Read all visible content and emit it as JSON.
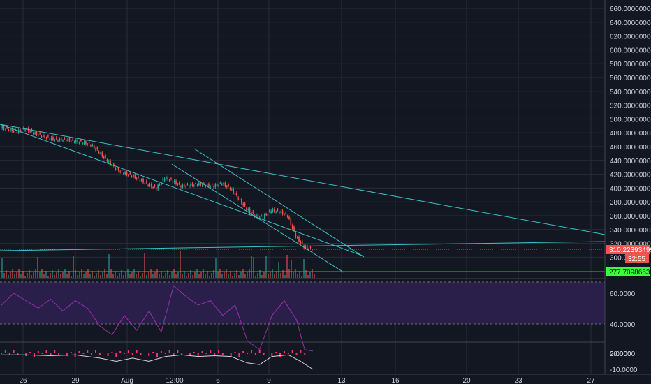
{
  "colors": {
    "background": "#131722",
    "grid": "#2a2e39",
    "axis_text": "#d1d4dc",
    "candle_up": "#26a69a",
    "candle_down": "#ef5350",
    "trendline": "#3dc1c9",
    "price_label": "#f05350",
    "support_line": "#4caf50",
    "support_label": "#3cff3c",
    "rsi_line": "#9b2fae",
    "rsi_band": "#2a1f4a",
    "macd_hist": "#ff2f77",
    "macd_line": "#d1d4dc"
  },
  "price_axis": {
    "ticks": [
      "660.00000000",
      "640.00000000",
      "620.00000000",
      "600.00000000",
      "580.00000000",
      "560.00000000",
      "540.00000000",
      "520.00000000",
      "500.00000000",
      "480.00000000",
      "460.00000000",
      "440.00000000",
      "420.00000000",
      "400.00000000",
      "380.00000000",
      "360.00000000",
      "340.00000000",
      "320.00000000",
      "300.000"
    ],
    "current_price_label": "310.22393499",
    "countdown_label": "32:55",
    "support_label": "277.70986639"
  },
  "rsi_axis": {
    "ticks": [
      "60.0000",
      "40.0000",
      "20.0000"
    ]
  },
  "macd_axis": {
    "ticks": [
      "0.0000",
      "-10.0000"
    ]
  },
  "time_axis": {
    "ticks": [
      "26",
      "29",
      "Aug",
      "12:00",
      "6",
      "9",
      "13",
      "16",
      "20",
      "23",
      "27"
    ]
  },
  "chart_data": {
    "type": "line",
    "title": "",
    "xlabel": "",
    "ylabel": "",
    "price_ylim": [
      300,
      660
    ],
    "rsi_ylim": [
      20,
      60
    ],
    "macd_ylim": [
      -10,
      0
    ],
    "price_series": [
      {
        "t": 0,
        "v": 488
      },
      {
        "t": 2,
        "v": 485
      },
      {
        "t": 4,
        "v": 482
      },
      {
        "t": 6,
        "v": 486
      },
      {
        "t": 8,
        "v": 480
      },
      {
        "t": 10,
        "v": 476
      },
      {
        "t": 12,
        "v": 472
      },
      {
        "t": 14,
        "v": 470
      },
      {
        "t": 16,
        "v": 470
      },
      {
        "t": 18,
        "v": 468
      },
      {
        "t": 20,
        "v": 466
      },
      {
        "t": 22,
        "v": 463
      },
      {
        "t": 24,
        "v": 452
      },
      {
        "t": 26,
        "v": 440
      },
      {
        "t": 28,
        "v": 428
      },
      {
        "t": 30,
        "v": 422
      },
      {
        "t": 32,
        "v": 418
      },
      {
        "t": 34,
        "v": 412
      },
      {
        "t": 36,
        "v": 405
      },
      {
        "t": 38,
        "v": 400
      },
      {
        "t": 40,
        "v": 415
      },
      {
        "t": 42,
        "v": 410
      },
      {
        "t": 44,
        "v": 403
      },
      {
        "t": 46,
        "v": 404
      },
      {
        "t": 48,
        "v": 406
      },
      {
        "t": 50,
        "v": 404
      },
      {
        "t": 52,
        "v": 403
      },
      {
        "t": 54,
        "v": 407
      },
      {
        "t": 56,
        "v": 400
      },
      {
        "t": 58,
        "v": 385
      },
      {
        "t": 60,
        "v": 370
      },
      {
        "t": 62,
        "v": 360
      },
      {
        "t": 64,
        "v": 358
      },
      {
        "t": 66,
        "v": 368
      },
      {
        "t": 68,
        "v": 366
      },
      {
        "t": 70,
        "v": 360
      },
      {
        "t": 72,
        "v": 330
      },
      {
        "t": 74,
        "v": 315
      },
      {
        "t": 76,
        "v": 311
      }
    ],
    "rsi_series": [
      {
        "t": 0,
        "v": 52
      },
      {
        "t": 3,
        "v": 60
      },
      {
        "t": 6,
        "v": 55
      },
      {
        "t": 9,
        "v": 50
      },
      {
        "t": 12,
        "v": 56
      },
      {
        "t": 15,
        "v": 48
      },
      {
        "t": 18,
        "v": 55
      },
      {
        "t": 21,
        "v": 50
      },
      {
        "t": 24,
        "v": 38
      },
      {
        "t": 27,
        "v": 32
      },
      {
        "t": 30,
        "v": 45
      },
      {
        "t": 33,
        "v": 35
      },
      {
        "t": 36,
        "v": 48
      },
      {
        "t": 39,
        "v": 34
      },
      {
        "t": 42,
        "v": 65
      },
      {
        "t": 45,
        "v": 58
      },
      {
        "t": 48,
        "v": 52
      },
      {
        "t": 51,
        "v": 55
      },
      {
        "t": 54,
        "v": 45
      },
      {
        "t": 57,
        "v": 52
      },
      {
        "t": 60,
        "v": 28
      },
      {
        "t": 63,
        "v": 22
      },
      {
        "t": 66,
        "v": 45
      },
      {
        "t": 69,
        "v": 55
      },
      {
        "t": 72,
        "v": 42
      },
      {
        "t": 74,
        "v": 22
      },
      {
        "t": 76,
        "v": 21
      }
    ],
    "macd_series": [
      {
        "t": 0,
        "v": -1
      },
      {
        "t": 6,
        "v": -1
      },
      {
        "t": 12,
        "v": -1.5
      },
      {
        "t": 18,
        "v": -1
      },
      {
        "t": 24,
        "v": -3
      },
      {
        "t": 28,
        "v": -5
      },
      {
        "t": 32,
        "v": -3
      },
      {
        "t": 36,
        "v": -5
      },
      {
        "t": 40,
        "v": -2
      },
      {
        "t": 44,
        "v": -1
      },
      {
        "t": 48,
        "v": -2
      },
      {
        "t": 52,
        "v": -1.5
      },
      {
        "t": 56,
        "v": -2
      },
      {
        "t": 60,
        "v": -6
      },
      {
        "t": 63,
        "v": -7
      },
      {
        "t": 66,
        "v": -2
      },
      {
        "t": 70,
        "v": -1
      },
      {
        "t": 73,
        "v": -5
      },
      {
        "t": 76,
        "v": -10
      }
    ]
  }
}
